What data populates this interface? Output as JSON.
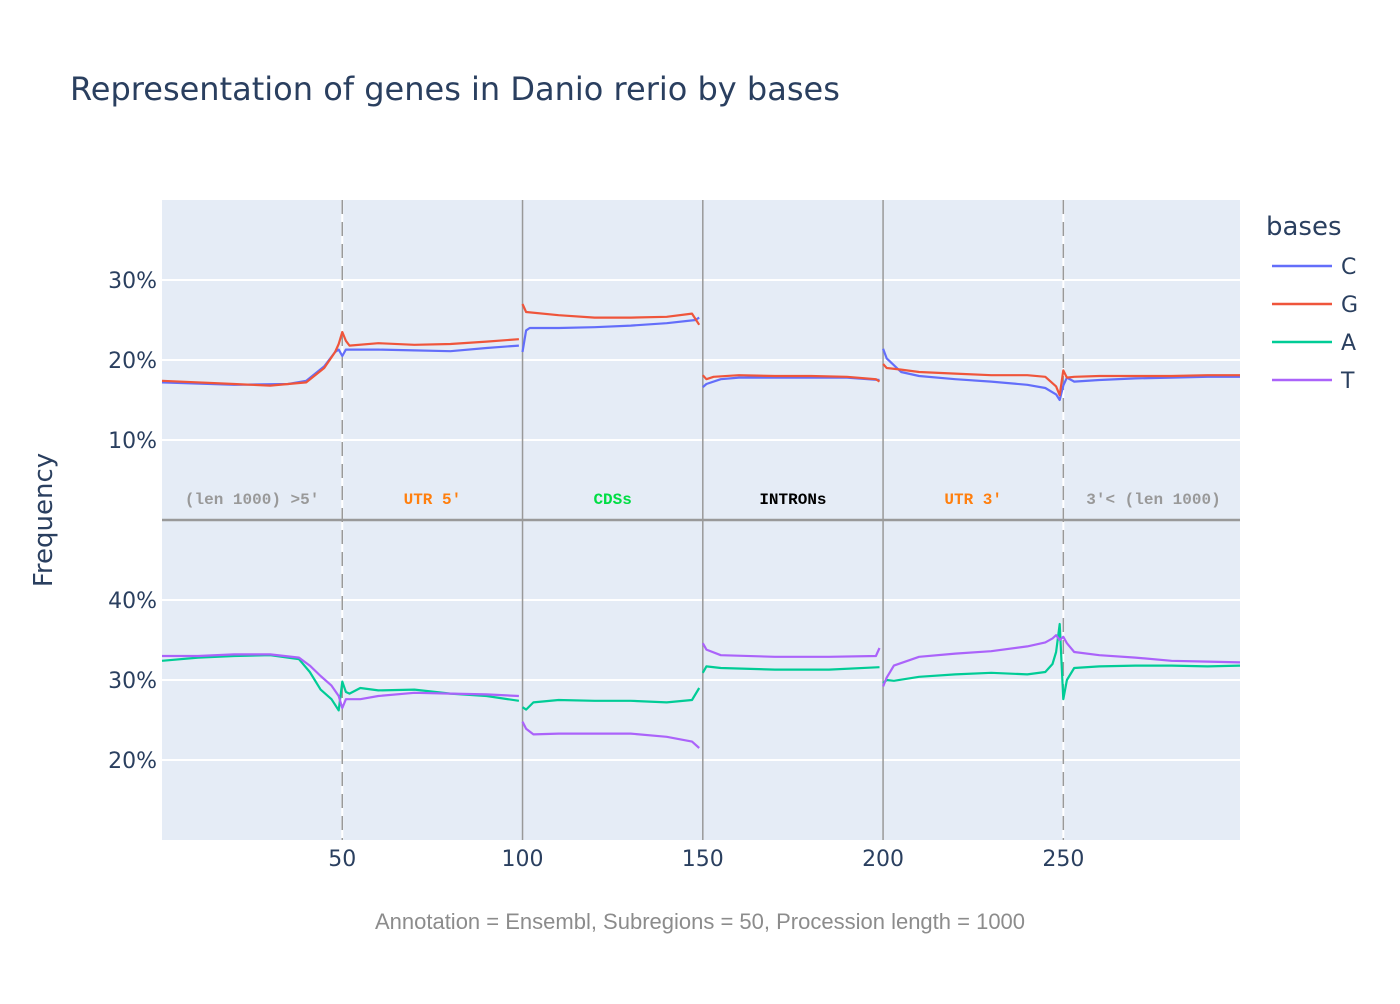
{
  "chart_data": {
    "type": "line",
    "title": "Representation of genes in Danio rerio by bases",
    "ylabel": "Frequency",
    "xlabel": "Annotation = Ensembl, Subregions = 50, Procession length = 1000",
    "x_ticks": [
      "50",
      "100",
      "150",
      "200",
      "250"
    ],
    "x_tick_values": [
      50,
      100,
      150,
      200,
      250
    ],
    "xlim": [
      0,
      299
    ],
    "legend_title": "bases",
    "legend_position": "top-right",
    "grid": true,
    "colors": {
      "C": "#636efa",
      "G": "#ef553b",
      "A": "#00cc96",
      "T": "#ab63fa"
    },
    "regions": [
      {
        "label": "(len 1000) >5'",
        "x": 25,
        "color": "#999999"
      },
      {
        "label": "UTR 5'",
        "x": 75,
        "color": "#ff7f0e"
      },
      {
        "label": "CDSs",
        "x": 125,
        "color": "#00dd44"
      },
      {
        "label": "INTRONs",
        "x": 175,
        "color": "#000000"
      },
      {
        "label": "UTR 3'",
        "x": 225,
        "color": "#ff7f0e"
      },
      {
        "label": "3'< (len 1000)",
        "x": 275,
        "color": "#999999"
      }
    ],
    "boundaries": [
      {
        "x": 50,
        "style": "dashed"
      },
      {
        "x": 100,
        "style": "solid"
      },
      {
        "x": 150,
        "style": "solid"
      },
      {
        "x": 200,
        "style": "solid"
      },
      {
        "x": 250,
        "style": "dashed"
      }
    ],
    "panels": [
      {
        "name": "top",
        "ylim": [
          0,
          40
        ],
        "y_ticks": [
          "10%",
          "20%",
          "30%"
        ],
        "y_tick_values": [
          10,
          20,
          30
        ],
        "series": [
          {
            "name": "C",
            "points": [
              [
                0,
                17.2
              ],
              [
                20,
                16.9
              ],
              [
                35,
                17.0
              ],
              [
                40,
                17.4
              ],
              [
                45,
                19.2
              ],
              [
                48,
                21.0
              ],
              [
                49,
                21.3
              ],
              [
                50,
                20.5
              ],
              [
                51,
                21.3
              ],
              [
                60,
                21.3
              ],
              [
                70,
                21.2
              ],
              [
                80,
                21.1
              ],
              [
                90,
                21.5
              ],
              [
                99,
                21.8
              ],
              [
                100,
                21.0
              ],
              [
                101,
                23.7
              ],
              [
                102,
                24.0
              ],
              [
                110,
                24.0
              ],
              [
                120,
                24.1
              ],
              [
                130,
                24.3
              ],
              [
                140,
                24.6
              ],
              [
                148,
                25.0
              ],
              [
                149,
                25.3
              ],
              [
                150,
                16.6
              ],
              [
                151,
                17.0
              ],
              [
                155,
                17.6
              ],
              [
                160,
                17.8
              ],
              [
                170,
                17.8
              ],
              [
                180,
                17.8
              ],
              [
                190,
                17.8
              ],
              [
                199,
                17.5
              ],
              [
                200,
                21.4
              ],
              [
                201,
                20.2
              ],
              [
                205,
                18.5
              ],
              [
                210,
                18.0
              ],
              [
                220,
                17.6
              ],
              [
                230,
                17.3
              ],
              [
                240,
                16.9
              ],
              [
                245,
                16.5
              ],
              [
                248,
                15.7
              ],
              [
                249,
                15.0
              ],
              [
                250,
                16.8
              ],
              [
                251,
                17.8
              ],
              [
                253,
                17.3
              ],
              [
                260,
                17.5
              ],
              [
                270,
                17.7
              ],
              [
                280,
                17.8
              ],
              [
                290,
                17.9
              ],
              [
                299,
                17.9
              ]
            ]
          },
          {
            "name": "G",
            "points": [
              [
                0,
                17.4
              ],
              [
                20,
                17.0
              ],
              [
                30,
                16.8
              ],
              [
                40,
                17.2
              ],
              [
                45,
                19.0
              ],
              [
                48,
                21.0
              ],
              [
                49,
                22.0
              ],
              [
                50,
                23.5
              ],
              [
                51,
                22.4
              ],
              [
                52,
                21.8
              ],
              [
                60,
                22.1
              ],
              [
                70,
                21.9
              ],
              [
                80,
                22.0
              ],
              [
                90,
                22.3
              ],
              [
                99,
                22.6
              ],
              [
                100,
                27.0
              ],
              [
                101,
                26.0
              ],
              [
                110,
                25.6
              ],
              [
                120,
                25.3
              ],
              [
                130,
                25.3
              ],
              [
                140,
                25.4
              ],
              [
                147,
                25.8
              ],
              [
                149,
                24.4
              ],
              [
                150,
                18.1
              ],
              [
                151,
                17.6
              ],
              [
                153,
                17.9
              ],
              [
                160,
                18.1
              ],
              [
                170,
                18.0
              ],
              [
                180,
                18.0
              ],
              [
                190,
                17.9
              ],
              [
                198,
                17.6
              ],
              [
                199,
                17.3
              ],
              [
                200,
                19.5
              ],
              [
                201,
                19.0
              ],
              [
                205,
                18.8
              ],
              [
                210,
                18.5
              ],
              [
                220,
                18.3
              ],
              [
                230,
                18.1
              ],
              [
                240,
                18.1
              ],
              [
                245,
                17.9
              ],
              [
                248,
                16.7
              ],
              [
                249,
                15.6
              ],
              [
                250,
                18.7
              ],
              [
                251,
                17.8
              ],
              [
                253,
                17.9
              ],
              [
                260,
                18.0
              ],
              [
                270,
                18.0
              ],
              [
                280,
                18.0
              ],
              [
                290,
                18.1
              ],
              [
                299,
                18.1
              ]
            ]
          },
          {
            "name": "A",
            "points": [
              [
                0,
                32.4
              ],
              [
                10,
                32.8
              ],
              [
                20,
                33.0
              ],
              [
                30,
                33.1
              ],
              [
                38,
                32.6
              ],
              [
                41,
                31.0
              ],
              [
                44,
                28.8
              ],
              [
                47,
                27.6
              ],
              [
                49,
                26.2
              ],
              [
                50,
                29.8
              ],
              [
                51,
                28.5
              ],
              [
                52,
                28.3
              ],
              [
                55,
                29.0
              ],
              [
                60,
                28.7
              ],
              [
                70,
                28.8
              ],
              [
                80,
                28.3
              ],
              [
                90,
                28.0
              ],
              [
                99,
                27.4
              ],
              [
                100,
                26.6
              ],
              [
                101,
                26.3
              ],
              [
                103,
                27.2
              ],
              [
                110,
                27.5
              ],
              [
                120,
                27.4
              ],
              [
                130,
                27.4
              ],
              [
                140,
                27.2
              ],
              [
                147,
                27.5
              ],
              [
                149,
                29.0
              ],
              [
                150,
                30.9
              ],
              [
                151,
                31.7
              ],
              [
                155,
                31.5
              ],
              [
                170,
                31.3
              ],
              [
                185,
                31.3
              ],
              [
                199,
                31.6
              ],
              [
                200,
                29.6
              ],
              [
                201,
                30.0
              ],
              [
                203,
                29.9
              ],
              [
                210,
                30.4
              ],
              [
                220,
                30.7
              ],
              [
                230,
                30.9
              ],
              [
                240,
                30.7
              ],
              [
                245,
                31.0
              ],
              [
                247,
                32.0
              ],
              [
                248,
                33.5
              ],
              [
                249,
                37.0
              ],
              [
                250,
                27.6
              ],
              [
                251,
                30.0
              ],
              [
                253,
                31.5
              ],
              [
                260,
                31.7
              ],
              [
                270,
                31.8
              ],
              [
                280,
                31.8
              ],
              [
                290,
                31.7
              ],
              [
                299,
                31.8
              ]
            ]
          },
          {
            "name": "T",
            "points": [
              [
                0,
                33.0
              ],
              [
                10,
                33.0
              ],
              [
                20,
                33.2
              ],
              [
                30,
                33.2
              ],
              [
                38,
                32.8
              ],
              [
                41,
                31.8
              ],
              [
                44,
                30.5
              ],
              [
                47,
                29.3
              ],
              [
                49,
                28.0
              ],
              [
                50,
                26.5
              ],
              [
                51,
                27.6
              ],
              [
                55,
                27.6
              ],
              [
                60,
                28.0
              ],
              [
                70,
                28.4
              ],
              [
                80,
                28.3
              ],
              [
                90,
                28.2
              ],
              [
                99,
                28.0
              ],
              [
                100,
                24.8
              ],
              [
                101,
                23.9
              ],
              [
                103,
                23.2
              ],
              [
                110,
                23.3
              ],
              [
                120,
                23.3
              ],
              [
                130,
                23.3
              ],
              [
                140,
                22.9
              ],
              [
                147,
                22.3
              ],
              [
                149,
                21.5
              ],
              [
                150,
                34.6
              ],
              [
                151,
                33.8
              ],
              [
                155,
                33.1
              ],
              [
                170,
                32.9
              ],
              [
                185,
                32.9
              ],
              [
                198,
                33.0
              ],
              [
                199,
                34.0
              ],
              [
                200,
                29.2
              ],
              [
                201,
                30.3
              ],
              [
                203,
                31.8
              ],
              [
                210,
                32.9
              ],
              [
                220,
                33.3
              ],
              [
                230,
                33.6
              ],
              [
                240,
                34.2
              ],
              [
                245,
                34.7
              ],
              [
                247,
                35.2
              ],
              [
                248,
                35.6
              ],
              [
                249,
                35.0
              ],
              [
                250,
                35.4
              ],
              [
                251,
                34.6
              ],
              [
                253,
                33.5
              ],
              [
                260,
                33.1
              ],
              [
                270,
                32.8
              ],
              [
                280,
                32.4
              ],
              [
                290,
                32.3
              ],
              [
                299,
                32.2
              ]
            ]
          }
        ]
      }
    ]
  }
}
